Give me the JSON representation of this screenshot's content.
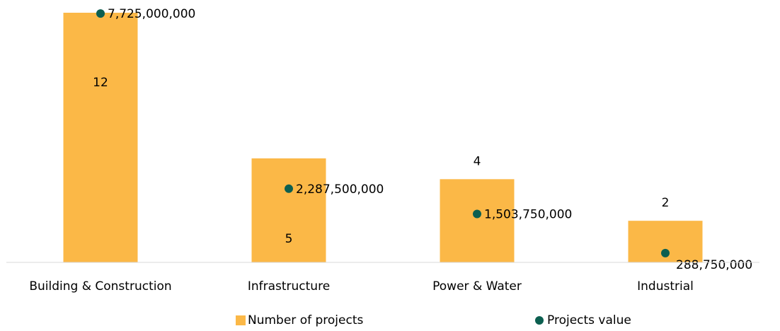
{
  "chart_data": {
    "type": "bar",
    "categories": [
      "Building & Construction",
      "Infrastructure",
      "Power & Water",
      "Industrial"
    ],
    "series": [
      {
        "name": "Number of projects",
        "color": "#fbb847",
        "type": "bar",
        "values": [
          12,
          5,
          4,
          2
        ]
      },
      {
        "name": "Projects value",
        "color": "#0c5f50",
        "type": "scatter",
        "axis": "y2",
        "values": [
          7725000000,
          2287500000,
          1503750000,
          288750000
        ],
        "value_labels": [
          "7,725,000,000",
          "2,287,500,000",
          "1,503,750,000",
          "288,750,000"
        ]
      }
    ],
    "ylim": [
      0,
      12
    ],
    "y2lim": [
      0,
      7750000000
    ],
    "legend": "bottom"
  }
}
